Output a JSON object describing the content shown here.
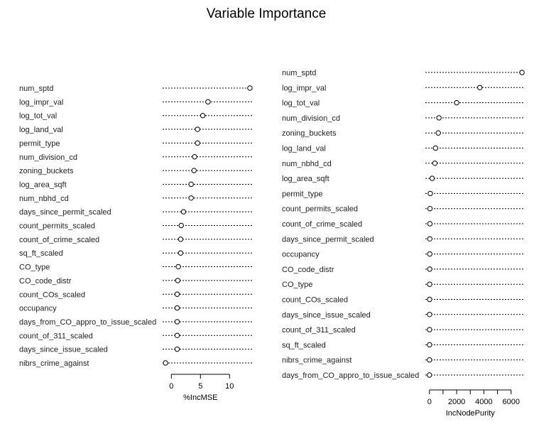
{
  "chart_data": [
    {
      "type": "scatter",
      "title": "Variable Importance",
      "xlabel": "%IncMSE",
      "ylabel": "",
      "xlim": [
        -1.5,
        14
      ],
      "ticks": [
        0,
        5,
        10
      ],
      "categories": [
        "num_sptd",
        "log_impr_val",
        "log_tot_val",
        "log_land_val",
        "permit_type",
        "num_division_cd",
        "zoning_buckets",
        "log_area_sqft",
        "num_nbhd_cd",
        "days_since_permit_scaled",
        "count_permits_scaled",
        "count_of_crime_scaled",
        "sq_ft_scaled",
        "CO_type",
        "CO_code_distr",
        "count_COs_scaled",
        "occupancy",
        "days_from_CO_appro_to_issue_scaled",
        "count_of_311_scaled",
        "days_since_issue_scaled",
        "nibrs_crime_against"
      ],
      "values": [
        13.5,
        6.3,
        5.4,
        4.5,
        4.5,
        4.0,
        3.9,
        3.4,
        3.4,
        2.1,
        1.7,
        1.6,
        1.6,
        1.2,
        1.1,
        1.0,
        1.0,
        1.0,
        1.0,
        1.0,
        -1.0
      ]
    },
    {
      "type": "scatter",
      "title": "",
      "xlabel": "IncNodePurity",
      "ylabel": "",
      "xlim": [
        -300,
        6900
      ],
      "ticks": [
        0,
        2000,
        4000,
        6000
      ],
      "minor_ticks": [
        1000,
        3000,
        5000
      ],
      "categories": [
        "num_sptd",
        "log_impr_val",
        "log_tot_val",
        "num_division_cd",
        "zoning_buckets",
        "log_land_val",
        "num_nbhd_cd",
        "log_area_sqft",
        "permit_type",
        "count_permits_scaled",
        "count_of_crime_scaled",
        "days_since_permit_scaled",
        "occupancy",
        "CO_code_distr",
        "CO_type",
        "count_COs_scaled",
        "days_since_issue_scaled",
        "count_of_311_scaled",
        "sq_ft_scaled",
        "nibrs_crime_against",
        "days_from_CO_appro_to_issue_scaled"
      ],
      "values": [
        6800,
        3700,
        2000,
        700,
        650,
        450,
        400,
        200,
        60,
        40,
        35,
        30,
        25,
        20,
        18,
        15,
        12,
        10,
        8,
        5,
        2
      ]
    }
  ]
}
